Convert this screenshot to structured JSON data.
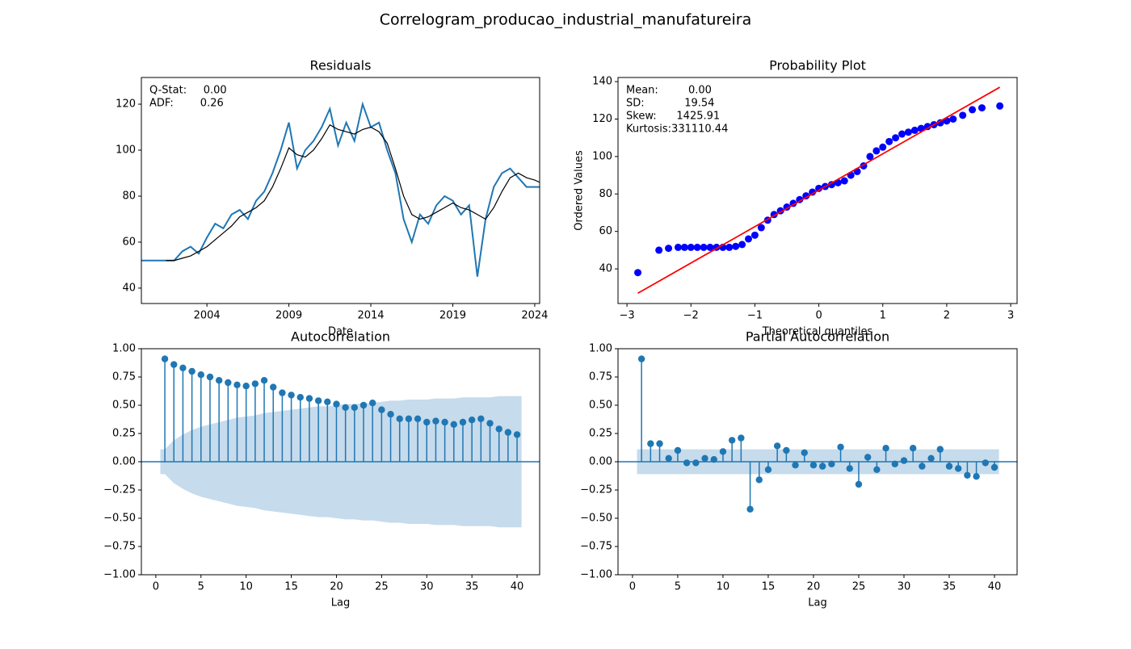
{
  "title": "Correlogram_producao_industrial_manufatureira",
  "chart_data": [
    {
      "type": "line",
      "title": "Residuals",
      "xlabel": "Date",
      "annotations": [
        "Q-Stat:     0.00",
        "ADF:        0.26"
      ],
      "xlim": [
        2000.0,
        2024.3
      ],
      "ylim": [
        33.3,
        131.6
      ],
      "xticks": [
        2004,
        2009,
        2014,
        2019,
        2024
      ],
      "yticks": [
        40,
        60,
        80,
        100,
        120
      ],
      "x": [
        2000.0,
        2000.5,
        2001.0,
        2001.5,
        2002.0,
        2002.5,
        2003.0,
        2003.5,
        2004.0,
        2004.5,
        2005.0,
        2005.5,
        2006.0,
        2006.5,
        2007.0,
        2007.5,
        2008.0,
        2008.5,
        2009.0,
        2009.5,
        2010.0,
        2010.5,
        2011.0,
        2011.5,
        2012.0,
        2012.5,
        2013.0,
        2013.5,
        2014.0,
        2014.5,
        2015.0,
        2015.5,
        2016.0,
        2016.5,
        2017.0,
        2017.5,
        2018.0,
        2018.5,
        2019.0,
        2019.5,
        2020.0,
        2020.5,
        2021.0,
        2021.5,
        2022.0,
        2022.5,
        2023.0,
        2023.5,
        2024.0,
        2024.3
      ],
      "series": [
        {
          "color": "#1f77b4",
          "values": [
            52,
            52,
            52,
            52,
            52,
            56,
            58,
            55,
            62,
            68,
            66,
            72,
            74,
            70,
            78,
            82,
            90,
            100,
            112,
            92,
            100,
            104,
            110,
            118,
            102,
            112,
            104,
            120,
            110,
            112,
            100,
            90,
            70,
            60,
            72,
            68,
            76,
            80,
            78,
            72,
            76,
            45,
            70,
            84,
            90,
            92,
            88,
            84,
            84,
            84
          ]
        },
        {
          "color": "#000000",
          "values": [
            null,
            null,
            null,
            52,
            52,
            53,
            54,
            56,
            58,
            61,
            64,
            67,
            71,
            73,
            75,
            78,
            84,
            92,
            101,
            98,
            97,
            100,
            105,
            111,
            109,
            108,
            107,
            109,
            110,
            108,
            103,
            92,
            80,
            72,
            70,
            71,
            73,
            75,
            77,
            75,
            74,
            72,
            70,
            75,
            82,
            88,
            90,
            88,
            87,
            86
          ]
        }
      ]
    },
    {
      "type": "scatter",
      "title": "Probability Plot",
      "xlabel": "Theoretical quantiles",
      "ylabel": "Ordered Values",
      "annotations": [
        "Mean:         0.00",
        "SD:            19.54",
        "Skew:      1425.91",
        "Kurtosis:331110.44"
      ],
      "xlim": [
        -3.14,
        3.1
      ],
      "ylim": [
        21.5,
        142.2
      ],
      "xticks": [
        {
          "value": -3,
          "label": "−3"
        },
        {
          "value": -2,
          "label": "−2"
        },
        {
          "value": -1,
          "label": "−1"
        },
        0,
        1,
        2,
        3
      ],
      "yticks": [
        40,
        60,
        80,
        100,
        120,
        140
      ],
      "series": [
        {
          "color": "#0000ff",
          "style": "points",
          "x": [
            -2.83,
            -2.5,
            -2.35,
            -2.2,
            -2.1,
            -2.0,
            -1.9,
            -1.8,
            -1.7,
            -1.6,
            -1.5,
            -1.4,
            -1.3,
            -1.2,
            -1.1,
            -1.0,
            -0.9,
            -0.8,
            -0.7,
            -0.6,
            -0.5,
            -0.4,
            -0.3,
            -0.2,
            -0.1,
            0,
            0.1,
            0.2,
            0.3,
            0.4,
            0.5,
            0.6,
            0.7,
            0.8,
            0.9,
            1.0,
            1.1,
            1.2,
            1.3,
            1.4,
            1.5,
            1.6,
            1.7,
            1.8,
            1.9,
            2.0,
            2.1,
            2.25,
            2.4,
            2.55,
            2.83
          ],
          "values": [
            38,
            50,
            51,
            51.5,
            51.5,
            51.5,
            51.5,
            51.5,
            51.5,
            51.5,
            51.5,
            51.5,
            52,
            53,
            56,
            58,
            62,
            66,
            69,
            71,
            73,
            75,
            77,
            79,
            81,
            83,
            84,
            85,
            86,
            87,
            90,
            92,
            95,
            100,
            103,
            105,
            108,
            110,
            112,
            113,
            114,
            115,
            116,
            117,
            118,
            119,
            120,
            122,
            125,
            126,
            127
          ]
        },
        {
          "color": "#ff0000",
          "style": "line",
          "x": [
            -2.83,
            2.83
          ],
          "values": [
            27,
            137
          ]
        }
      ]
    },
    {
      "type": "stem",
      "title": "Autocorrelation",
      "xlabel": "Lag",
      "color": "#1f77b4",
      "band_color": "#c6dbec",
      "xlim": [
        -1.6,
        42.5
      ],
      "ylim": [
        -1,
        1
      ],
      "xticks": [
        0,
        5,
        10,
        15,
        20,
        25,
        30,
        35,
        40
      ],
      "yticks": [
        {
          "value": -1,
          "label": "−1.00"
        },
        {
          "value": -0.75,
          "label": "−0.75"
        },
        {
          "value": -0.5,
          "label": "−0.50"
        },
        {
          "value": -0.25,
          "label": "−0.25"
        },
        {
          "value": 0,
          "label": "0.00"
        },
        {
          "value": 0.25,
          "label": "0.25"
        },
        {
          "value": 0.5,
          "label": "0.50"
        },
        {
          "value": 0.75,
          "label": "0.75"
        },
        {
          "value": 1,
          "label": "1.00"
        }
      ],
      "x": [
        1,
        2,
        3,
        4,
        5,
        6,
        7,
        8,
        9,
        10,
        11,
        12,
        13,
        14,
        15,
        16,
        17,
        18,
        19,
        20,
        21,
        22,
        23,
        24,
        25,
        26,
        27,
        28,
        29,
        30,
        31,
        32,
        33,
        34,
        35,
        36,
        37,
        38,
        39,
        40
      ],
      "values": [
        0.91,
        0.86,
        0.83,
        0.8,
        0.77,
        0.75,
        0.72,
        0.7,
        0.68,
        0.67,
        0.69,
        0.72,
        0.66,
        0.61,
        0.59,
        0.57,
        0.56,
        0.54,
        0.53,
        0.51,
        0.48,
        0.48,
        0.5,
        0.52,
        0.46,
        0.42,
        0.38,
        0.38,
        0.38,
        0.35,
        0.36,
        0.35,
        0.33,
        0.35,
        0.37,
        0.38,
        0.34,
        0.29,
        0.26,
        0.24
      ],
      "confint": [
        0.11,
        0.19,
        0.24,
        0.28,
        0.31,
        0.33,
        0.35,
        0.37,
        0.39,
        0.4,
        0.41,
        0.43,
        0.44,
        0.45,
        0.46,
        0.47,
        0.48,
        0.49,
        0.49,
        0.5,
        0.51,
        0.51,
        0.52,
        0.52,
        0.53,
        0.54,
        0.54,
        0.55,
        0.55,
        0.55,
        0.56,
        0.56,
        0.56,
        0.57,
        0.57,
        0.57,
        0.57,
        0.58,
        0.58,
        0.58
      ]
    },
    {
      "type": "stem",
      "title": "Partial Autocorrelation",
      "xlabel": "Lag",
      "color": "#1f77b4",
      "band_color": "#c6dbec",
      "xlim": [
        -1.6,
        42.5
      ],
      "ylim": [
        -1,
        1
      ],
      "xticks": [
        0,
        5,
        10,
        15,
        20,
        25,
        30,
        35,
        40
      ],
      "yticks": [
        {
          "value": -1,
          "label": "−1.00"
        },
        {
          "value": -0.75,
          "label": "−0.75"
        },
        {
          "value": -0.5,
          "label": "−0.50"
        },
        {
          "value": -0.25,
          "label": "−0.25"
        },
        {
          "value": 0,
          "label": "0.00"
        },
        {
          "value": 0.25,
          "label": "0.25"
        },
        {
          "value": 0.5,
          "label": "0.50"
        },
        {
          "value": 0.75,
          "label": "0.75"
        },
        {
          "value": 1,
          "label": "1.00"
        }
      ],
      "x": [
        1,
        2,
        3,
        4,
        5,
        6,
        7,
        8,
        9,
        10,
        11,
        12,
        13,
        14,
        15,
        16,
        17,
        18,
        19,
        20,
        21,
        22,
        23,
        24,
        25,
        26,
        27,
        28,
        29,
        30,
        31,
        32,
        33,
        34,
        35,
        36,
        37,
        38,
        39,
        40
      ],
      "values": [
        0.91,
        0.16,
        0.16,
        0.03,
        0.1,
        -0.01,
        -0.01,
        0.03,
        0.02,
        0.09,
        0.19,
        0.21,
        -0.42,
        -0.16,
        -0.07,
        0.14,
        0.1,
        -0.03,
        0.08,
        -0.03,
        -0.04,
        -0.02,
        0.13,
        -0.06,
        -0.2,
        0.04,
        -0.07,
        0.12,
        -0.02,
        0.01,
        0.12,
        -0.04,
        0.03,
        0.11,
        -0.04,
        -0.06,
        -0.12,
        -0.13,
        -0.01,
        -0.05
      ],
      "confint": 0.11
    }
  ]
}
